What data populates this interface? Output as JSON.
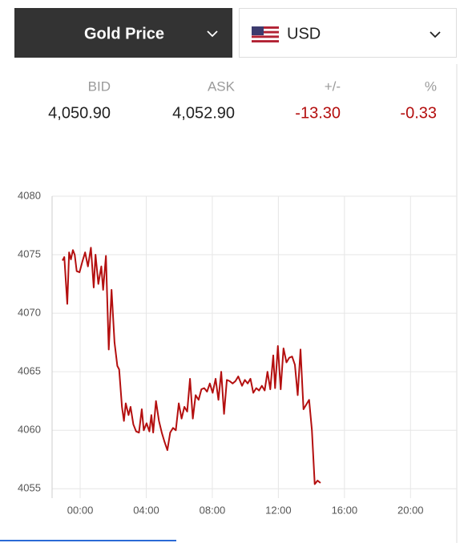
{
  "widget": {
    "metal_selector": "Gold Price",
    "currency_selector": "USD"
  },
  "quote": {
    "headers": [
      "BID",
      "ASK",
      "+/-",
      "%"
    ],
    "values": [
      "4,050.90",
      "4,052.90",
      "-13.30",
      "-0.33"
    ]
  },
  "chart_data": {
    "type": "line",
    "x": [
      -1.07,
      -0.96,
      -0.78,
      -0.67,
      -0.56,
      -0.44,
      -0.33,
      -0.21,
      -0.04,
      0.13,
      0.3,
      0.47,
      0.65,
      0.82,
      0.93,
      1.1,
      1.28,
      1.39,
      1.56,
      1.73,
      1.9,
      2.08,
      2.25,
      2.36,
      2.53,
      2.65,
      2.76,
      2.93,
      3.05,
      3.22,
      3.39,
      3.56,
      3.73,
      3.85,
      4.02,
      4.19,
      4.31,
      4.42,
      4.59,
      4.77,
      4.94,
      5.11,
      5.28,
      5.45,
      5.62,
      5.79,
      5.97,
      6.14,
      6.31,
      6.48,
      6.65,
      6.82,
      6.99,
      7.17,
      7.34,
      7.51,
      7.68,
      7.85,
      8.02,
      8.2,
      8.37,
      8.54,
      8.71,
      8.88,
      9.05,
      9.23,
      9.4,
      9.57,
      9.8,
      9.97,
      10.14,
      10.31,
      10.48,
      10.66,
      10.83,
      11.0,
      11.17,
      11.34,
      11.51,
      11.69,
      11.8,
      11.97,
      12.14,
      12.31,
      12.49,
      12.66,
      12.83,
      13.0,
      13.17,
      13.34,
      13.52,
      13.69,
      13.86,
      14.03,
      14.2,
      14.37,
      14.55
    ],
    "series": [
      {
        "name": "Gold",
        "color": "#b40f0f",
        "values": [
          4074.5,
          4074.8,
          4070.8,
          4075.2,
          4074.6,
          4075.4,
          4075.0,
          4073.6,
          4073.5,
          4074.4,
          4075.2,
          4074.0,
          4075.6,
          4072.2,
          4075.0,
          4072.5,
          4074.0,
          4072.0,
          4074.9,
          4066.9,
          4072.0,
          4067.5,
          4065.5,
          4065.2,
          4062.0,
          4060.8,
          4062.3,
          4061.3,
          4062.0,
          4060.5,
          4059.9,
          4059.8,
          4061.8,
          4060.0,
          4060.6,
          4059.9,
          4061.3,
          4059.8,
          4062.5,
          4060.8,
          4059.8,
          4059.0,
          4058.3,
          4059.8,
          4060.2,
          4060.0,
          4062.3,
          4061.0,
          4062.0,
          4061.6,
          4064.4,
          4061.0,
          4063.0,
          4062.6,
          4063.5,
          4063.6,
          4063.3,
          4064.0,
          4063.2,
          4064.4,
          4062.6,
          4065.0,
          4061.4,
          4064.3,
          4064.2,
          4064.0,
          4064.2,
          4064.6,
          4063.8,
          4064.3,
          4064.0,
          4064.4,
          4063.2,
          4063.6,
          4063.4,
          4063.8,
          4063.4,
          4065.0,
          4063.5,
          4066.4,
          4063.6,
          4067.2,
          4063.5,
          4067.0,
          4065.8,
          4066.2,
          4066.3,
          4065.6,
          4063.0,
          4066.9,
          4061.8,
          4062.2,
          4062.6,
          4060.0,
          4055.4,
          4055.7,
          4055.5
        ]
      }
    ],
    "xlim": [
      -1.7,
      22.8
    ],
    "xticks": [
      {
        "value": 0,
        "label": "00:00"
      },
      {
        "value": 4,
        "label": "04:00"
      },
      {
        "value": 8,
        "label": "08:00"
      },
      {
        "value": 12,
        "label": "12:00"
      },
      {
        "value": 16,
        "label": "16:00"
      },
      {
        "value": 20,
        "label": "20:00"
      }
    ],
    "ylim": [
      4054.2,
      4080
    ],
    "yticks": [
      4055,
      4060,
      4065,
      4070,
      4075,
      4080
    ],
    "grid": true
  }
}
